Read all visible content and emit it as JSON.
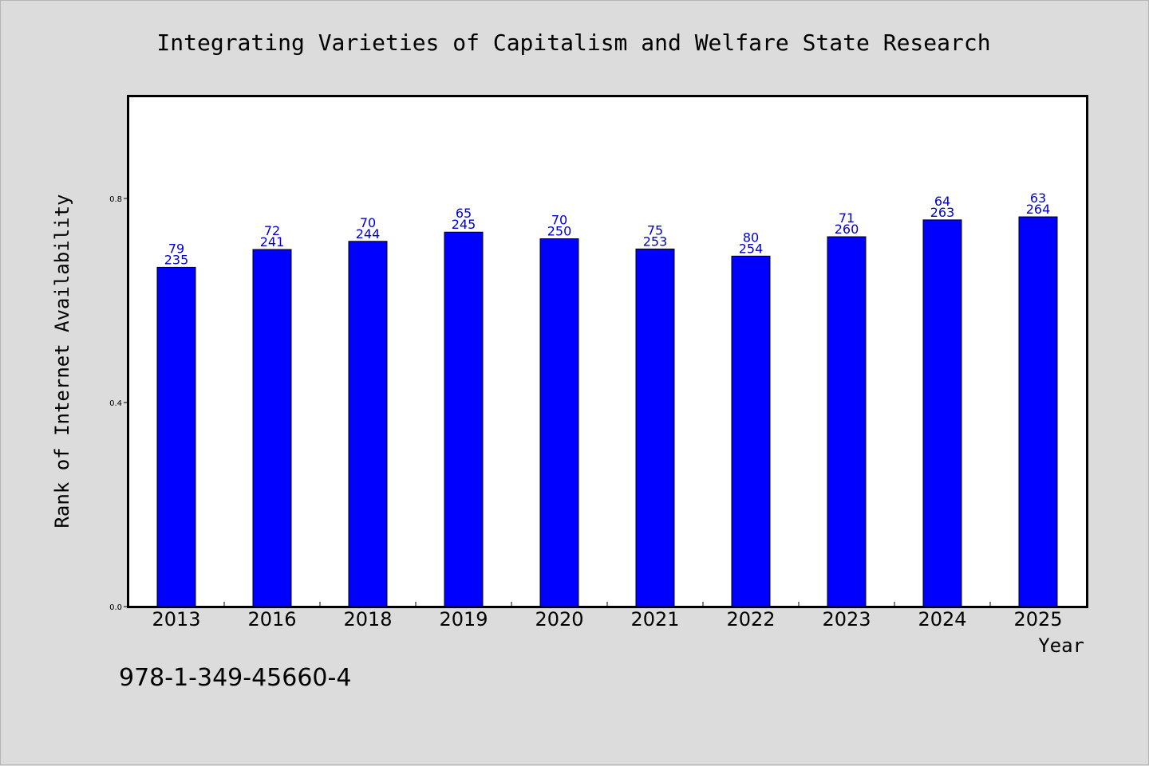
{
  "chart_data": {
    "type": "bar",
    "title": "Integrating Varieties of Capitalism and Welfare State Research",
    "xlabel": "Year",
    "ylabel": "Rank of Internet Availability",
    "categories": [
      "2013",
      "2016",
      "2018",
      "2019",
      "2020",
      "2021",
      "2022",
      "2023",
      "2024",
      "2025"
    ],
    "values": [
      0.665,
      0.7,
      0.716,
      0.734,
      0.721,
      0.701,
      0.687,
      0.725,
      0.758,
      0.764
    ],
    "label_top": [
      "79",
      "72",
      "70",
      "65",
      "70",
      "75",
      "80",
      "71",
      "64",
      "63"
    ],
    "label_bottom": [
      "235",
      "241",
      "244",
      "245",
      "250",
      "253",
      "254",
      "260",
      "263",
      "264"
    ],
    "ylim": [
      0,
      1.0
    ],
    "yticks": [
      0.0,
      0.4,
      0.8
    ],
    "ytick_labels": [
      "0.0",
      "0.4",
      "0.8"
    ],
    "grid": false,
    "colors": {
      "bar": "#0000ff",
      "bar_edge": "#000000",
      "data_label": "#0000cc",
      "plot_background": "#ffffff",
      "figure_background": "#dcdcdc"
    }
  },
  "footer": {
    "isbn": "978-1-349-45660-4"
  }
}
